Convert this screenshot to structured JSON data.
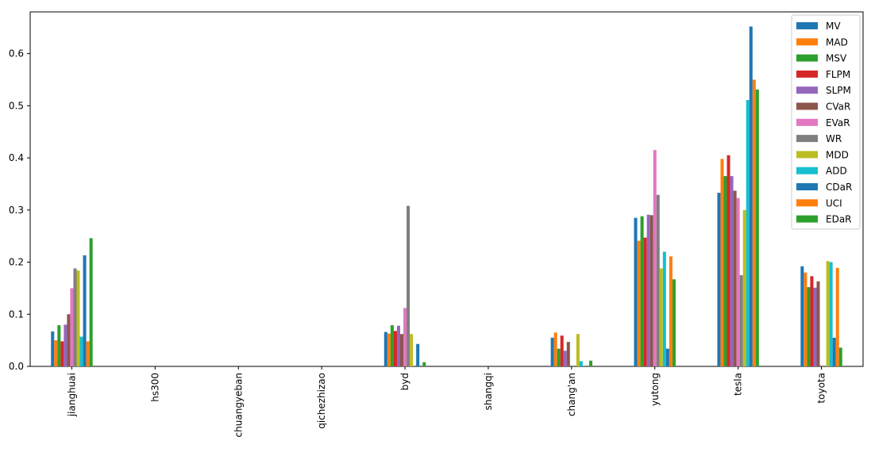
{
  "chart_data": {
    "type": "bar",
    "categories": [
      "jianghuai",
      "hs300",
      "chuangyeban",
      "qichezhizao",
      "byd",
      "shangqi",
      "chang'an",
      "yutong",
      "tesla",
      "toyota"
    ],
    "ylim": [
      0,
      0.68
    ],
    "yticks": [
      0.0,
      0.1,
      0.2,
      0.3,
      0.4,
      0.5,
      0.6
    ],
    "ytick_labels": [
      "0.0",
      "0.1",
      "0.2",
      "0.3",
      "0.4",
      "0.5",
      "0.6"
    ],
    "grid": false,
    "legend_position": "top-right",
    "series": [
      {
        "name": "MV",
        "color": "#1f77b4",
        "values": [
          0.067,
          0,
          0,
          0,
          0.066,
          0,
          0.055,
          0.285,
          0.333,
          0.192
        ]
      },
      {
        "name": "MAD",
        "color": "#ff7f0e",
        "values": [
          0.05,
          0,
          0,
          0,
          0.063,
          0,
          0.065,
          0.241,
          0.398,
          0.18
        ]
      },
      {
        "name": "MSV",
        "color": "#2ca02c",
        "values": [
          0.079,
          0,
          0,
          0,
          0.079,
          0,
          0.034,
          0.288,
          0.365,
          0.152
        ]
      },
      {
        "name": "FLPM",
        "color": "#d62728",
        "values": [
          0.048,
          0,
          0,
          0,
          0.068,
          0,
          0.059,
          0.247,
          0.405,
          0.173
        ]
      },
      {
        "name": "SLPM",
        "color": "#9467bd",
        "values": [
          0.08,
          0,
          0,
          0,
          0.078,
          0,
          0.03,
          0.291,
          0.365,
          0.151
        ]
      },
      {
        "name": "CVaR",
        "color": "#8c564b",
        "values": [
          0.1,
          0,
          0,
          0,
          0.062,
          0,
          0.047,
          0.29,
          0.337,
          0.163
        ]
      },
      {
        "name": "EVaR",
        "color": "#e377c2",
        "values": [
          0.15,
          0,
          0,
          0,
          0.112,
          0,
          0.0,
          0.415,
          0.323,
          0.0
        ]
      },
      {
        "name": "WR",
        "color": "#7f7f7f",
        "values": [
          0.188,
          0,
          0,
          0,
          0.308,
          0,
          0.0,
          0.329,
          0.175,
          0.0
        ]
      },
      {
        "name": "MDD",
        "color": "#bcbd22",
        "values": [
          0.184,
          0,
          0,
          0,
          0.062,
          0,
          0.062,
          0.188,
          0.3,
          0.202
        ]
      },
      {
        "name": "ADD",
        "color": "#17becf",
        "values": [
          0.057,
          0,
          0,
          0,
          0.0,
          0,
          0.01,
          0.22,
          0.511,
          0.2
        ]
      },
      {
        "name": "CDaR",
        "color": "#1f77b4",
        "values": [
          0.213,
          0,
          0,
          0,
          0.043,
          0,
          0.0,
          0.034,
          0.652,
          0.055
        ]
      },
      {
        "name": "UCI",
        "color": "#ff7f0e",
        "values": [
          0.048,
          0,
          0,
          0,
          0.0,
          0,
          0.0,
          0.211,
          0.55,
          0.189
        ]
      },
      {
        "name": "EDaR",
        "color": "#2ca02c",
        "values": [
          0.246,
          0,
          0,
          0,
          0.008,
          0,
          0.011,
          0.167,
          0.531,
          0.036
        ]
      }
    ]
  }
}
